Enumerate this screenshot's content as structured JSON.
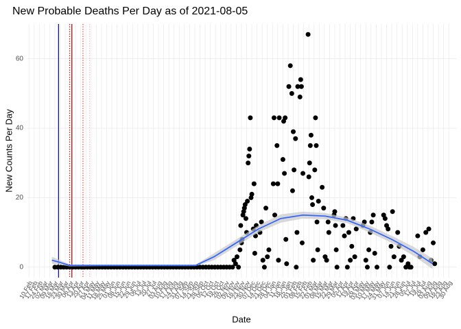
{
  "chart_data": {
    "type": "scatter",
    "title": "New Probable Deaths Per Day as of 2021-08-05",
    "x_label": "Date",
    "y_label": "New Counts Per Day",
    "xlim": [
      -2,
      577
    ],
    "ylim": [
      -3,
      70
    ],
    "yticks": [
      0,
      20,
      40,
      60
    ],
    "xticks": [
      {
        "value": 0,
        "label": "10 Feb"
      },
      {
        "value": 7,
        "label": "17 Feb"
      },
      {
        "value": 14,
        "label": "24 Feb"
      },
      {
        "value": 21,
        "label": "02 Mar"
      },
      {
        "value": 28,
        "label": "09 Mar"
      },
      {
        "value": 35,
        "label": "16 Mar"
      },
      {
        "value": 42,
        "label": "23 Mar"
      },
      {
        "value": 49,
        "label": "30 Mar"
      },
      {
        "value": 56,
        "label": "06 Apr"
      },
      {
        "value": 63,
        "label": "13 Apr"
      },
      {
        "value": 70,
        "label": "20 Apr"
      },
      {
        "value": 77,
        "label": "27 Apr"
      },
      {
        "value": 84,
        "label": "04 May"
      },
      {
        "value": 91,
        "label": "11 May"
      },
      {
        "value": 98,
        "label": "18 May"
      },
      {
        "value": 105,
        "label": "25 May"
      },
      {
        "value": 112,
        "label": "01 Jun"
      },
      {
        "value": 119,
        "label": "08 Jun"
      },
      {
        "value": 126,
        "label": "15 Jun"
      },
      {
        "value": 133,
        "label": "22 Jun"
      },
      {
        "value": 140,
        "label": "29 Jun"
      },
      {
        "value": 147,
        "label": "06 Jul"
      },
      {
        "value": 154,
        "label": "13 Jul"
      },
      {
        "value": 161,
        "label": "20 Jul"
      },
      {
        "value": 168,
        "label": "27 Jul"
      },
      {
        "value": 175,
        "label": "03 Aug"
      },
      {
        "value": 182,
        "label": "10 Aug"
      },
      {
        "value": 189,
        "label": "17 Aug"
      },
      {
        "value": 196,
        "label": "24 Aug"
      },
      {
        "value": 203,
        "label": "31 Aug"
      },
      {
        "value": 210,
        "label": "07 Sep"
      },
      {
        "value": 217,
        "label": "14 Sep"
      },
      {
        "value": 224,
        "label": "21 Sep"
      },
      {
        "value": 231,
        "label": "28 Sep"
      },
      {
        "value": 238,
        "label": "05 Oct"
      },
      {
        "value": 245,
        "label": "12 Oct"
      },
      {
        "value": 252,
        "label": "19 Oct"
      },
      {
        "value": 259,
        "label": "26 Oct"
      },
      {
        "value": 266,
        "label": "02 Nov"
      },
      {
        "value": 273,
        "label": "09 Nov"
      },
      {
        "value": 280,
        "label": "16 Nov"
      },
      {
        "value": 287,
        "label": "23 Nov"
      },
      {
        "value": 294,
        "label": "30 Nov"
      },
      {
        "value": 301,
        "label": "07 Dec"
      },
      {
        "value": 308,
        "label": "14 Dec"
      },
      {
        "value": 315,
        "label": "21 Dec"
      },
      {
        "value": 322,
        "label": "28 Dec"
      },
      {
        "value": 329,
        "label": "04 Jan"
      },
      {
        "value": 336,
        "label": "11 Jan"
      },
      {
        "value": 343,
        "label": "18 Jan"
      },
      {
        "value": 350,
        "label": "25 Jan"
      },
      {
        "value": 357,
        "label": "01 Feb"
      },
      {
        "value": 364,
        "label": "08 Feb"
      },
      {
        "value": 371,
        "label": "15 Feb"
      },
      {
        "value": 378,
        "label": "22 Feb"
      },
      {
        "value": 385,
        "label": "01 Mar"
      },
      {
        "value": 392,
        "label": "08 Mar"
      },
      {
        "value": 399,
        "label": "15 Mar"
      },
      {
        "value": 406,
        "label": "22 Mar"
      },
      {
        "value": 413,
        "label": "29 Mar"
      },
      {
        "value": 420,
        "label": "05 Apr"
      },
      {
        "value": 427,
        "label": "12 Apr"
      },
      {
        "value": 434,
        "label": "19 Apr"
      },
      {
        "value": 441,
        "label": "26 Apr"
      },
      {
        "value": 448,
        "label": "03 May"
      },
      {
        "value": 455,
        "label": "10 May"
      },
      {
        "value": 462,
        "label": "17 May"
      },
      {
        "value": 469,
        "label": "24 May"
      },
      {
        "value": 476,
        "label": "31 May"
      },
      {
        "value": 483,
        "label": "07 Jun"
      },
      {
        "value": 490,
        "label": "14 Jun"
      },
      {
        "value": 497,
        "label": "21 Jun"
      },
      {
        "value": 504,
        "label": "28 Jun"
      },
      {
        "value": 511,
        "label": "05 Jul"
      },
      {
        "value": 518,
        "label": "12 Jul"
      },
      {
        "value": 525,
        "label": "19 Jul"
      },
      {
        "value": 532,
        "label": "26 Jul"
      },
      {
        "value": 539,
        "label": "02 Aug"
      },
      {
        "value": 546,
        "label": "09 Aug"
      },
      {
        "value": 553,
        "label": "16 Aug"
      },
      {
        "value": 560,
        "label": "23 Aug"
      },
      {
        "value": 567,
        "label": "30 Aug"
      }
    ],
    "grid": true,
    "point_color": "#000000",
    "x": [
      35,
      39,
      43,
      47,
      51,
      55,
      59,
      63,
      67,
      71,
      75,
      79,
      83,
      87,
      91,
      95,
      99,
      103,
      107,
      111,
      115,
      119,
      123,
      127,
      131,
      135,
      139,
      143,
      147,
      151,
      155,
      159,
      163,
      167,
      171,
      175,
      179,
      183,
      187,
      191,
      195,
      199,
      203,
      207,
      211,
      215,
      219,
      223,
      227,
      231,
      235,
      239,
      243,
      247,
      251,
      255,
      259,
      263,
      267,
      271,
      275,
      277,
      279,
      281,
      283,
      285,
      286,
      287,
      288,
      289,
      290,
      291,
      292,
      293,
      294,
      295,
      296,
      297,
      298,
      299,
      300,
      301,
      303,
      304,
      305,
      306,
      307,
      312,
      314,
      316,
      318,
      320,
      322,
      324,
      330,
      331,
      332,
      335,
      336,
      337,
      338,
      343,
      344,
      345,
      346,
      347,
      348,
      351,
      353,
      355,
      356,
      357,
      358,
      360,
      361,
      362,
      363,
      366,
      367,
      368,
      369,
      370,
      377,
      378,
      379,
      380,
      381,
      382,
      383,
      384,
      386,
      387,
      388,
      389,
      390,
      391,
      396,
      398,
      400,
      402,
      404,
      405,
      412,
      413,
      414,
      415,
      416,
      424,
      426,
      428,
      430,
      432,
      434,
      436,
      438,
      440,
      442,
      451,
      453,
      455,
      457,
      459,
      461,
      463,
      465,
      467,
      470,
      479,
      481,
      483,
      485,
      487,
      489,
      491,
      493,
      498,
      500,
      503,
      506,
      509,
      512,
      514,
      516,
      525,
      528,
      532,
      536,
      540,
      543,
      546,
      548
    ],
    "values": [
      0,
      0,
      0,
      0,
      0,
      0,
      0,
      0,
      0,
      0,
      0,
      0,
      0,
      0,
      0,
      0,
      0,
      0,
      0,
      0,
      0,
      0,
      0,
      0,
      0,
      0,
      0,
      0,
      0,
      0,
      0,
      0,
      0,
      0,
      0,
      0,
      0,
      0,
      0,
      0,
      0,
      0,
      0,
      0,
      0,
      0,
      0,
      0,
      0,
      0,
      0,
      0,
      0,
      0,
      0,
      0,
      0,
      0,
      0,
      0,
      0,
      2,
      1,
      3,
      0,
      5,
      12,
      7,
      8,
      15,
      16,
      17,
      18,
      14,
      10,
      19,
      30,
      32,
      34,
      43,
      20,
      21,
      11,
      24,
      4,
      9,
      12,
      10,
      13,
      2,
      0,
      17,
      3,
      5,
      24,
      43,
      15,
      35,
      24,
      2,
      43,
      31,
      42,
      27,
      43,
      8,
      1,
      52,
      58,
      50,
      22,
      39,
      28,
      37,
      0,
      10,
      52,
      49,
      54,
      52,
      7,
      27,
      67,
      26,
      30,
      35,
      38,
      20,
      18,
      2,
      28,
      43,
      35,
      13,
      5,
      19,
      23,
      17,
      3,
      2,
      13,
      10,
      15,
      16,
      12,
      5,
      0,
      12,
      9,
      14,
      0,
      10,
      2,
      6,
      14,
      3,
      11,
      12,
      13,
      2,
      0,
      5,
      10,
      13,
      15,
      4,
      0,
      15,
      14,
      12,
      11,
      0,
      6,
      16,
      3,
      10,
      6,
      2,
      3,
      0,
      1,
      0,
      0,
      9,
      3,
      5,
      10,
      11,
      2,
      7,
      1
    ],
    "smooth": {
      "color": "#3366ff",
      "band_color": "#c8c8c8",
      "x": [
        31,
        40,
        55,
        100,
        150,
        200,
        225,
        250,
        280,
        310,
        340,
        370,
        400,
        430,
        460,
        490,
        520,
        545
      ],
      "values": [
        2,
        1.5,
        0.5,
        0.5,
        0.5,
        0.5,
        0.5,
        3,
        7,
        11,
        14,
        15,
        14.7,
        13.5,
        11,
        8,
        4.5,
        1
      ],
      "lower": [
        1,
        0.8,
        0.2,
        0.3,
        0.3,
        0.3,
        0.3,
        2,
        6,
        10,
        12.8,
        14,
        13.8,
        12.7,
        10,
        7,
        3.2,
        -0.5
      ],
      "upper": [
        3,
        2.2,
        0.8,
        0.7,
        0.7,
        0.7,
        0.7,
        4,
        8,
        12,
        15.2,
        16,
        15.6,
        14.3,
        12,
        9,
        5.8,
        2.5
      ]
    },
    "vlines": [
      {
        "x": 40,
        "color": "#00008b",
        "style": "solid"
      },
      {
        "x": 55,
        "color": "#ff0000",
        "style": "dotted"
      },
      {
        "x": 58,
        "color": "#8b0000",
        "style": "solid"
      },
      {
        "x": 73,
        "color": "#ff4040",
        "style": "dotted"
      },
      {
        "x": 82,
        "color": "#ffb6c1",
        "style": "dotted"
      }
    ]
  }
}
